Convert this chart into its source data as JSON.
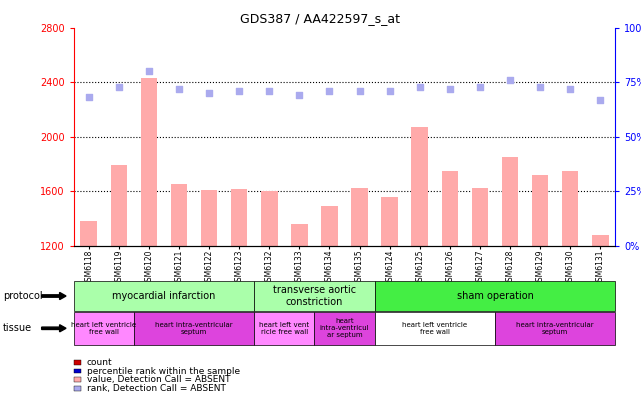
{
  "title": "GDS387 / AA422597_s_at",
  "samples": [
    "GSM6118",
    "GSM6119",
    "GSM6120",
    "GSM6121",
    "GSM6122",
    "GSM6123",
    "GSM6132",
    "GSM6133",
    "GSM6134",
    "GSM6135",
    "GSM6124",
    "GSM6125",
    "GSM6126",
    "GSM6127",
    "GSM6128",
    "GSM6129",
    "GSM6130",
    "GSM6131"
  ],
  "bar_values": [
    1380,
    1790,
    2430,
    1650,
    1610,
    1615,
    1600,
    1360,
    1490,
    1620,
    1560,
    2070,
    1750,
    1620,
    1850,
    1720,
    1750,
    1280
  ],
  "rank_values": [
    68,
    73,
    80,
    72,
    70,
    71,
    71,
    69,
    71,
    71,
    71,
    73,
    72,
    73,
    76,
    73,
    72,
    67
  ],
  "bar_color": "#ffaaaa",
  "rank_color": "#aaaaee",
  "ylim_left": [
    1200,
    2800
  ],
  "ylim_right": [
    0,
    100
  ],
  "yticks_left": [
    1200,
    1600,
    2000,
    2400,
    2800
  ],
  "yticks_right": [
    0,
    25,
    50,
    75,
    100
  ],
  "hlines": [
    1600,
    2000,
    2400
  ],
  "protocol_groups": [
    {
      "label": "myocardial infarction",
      "start": 0,
      "end": 6,
      "color": "#aaffaa"
    },
    {
      "label": "transverse aortic\nconstriction",
      "start": 6,
      "end": 10,
      "color": "#aaffaa"
    },
    {
      "label": "sham operation",
      "start": 10,
      "end": 18,
      "color": "#44ee44"
    }
  ],
  "tissue_groups": [
    {
      "label": "heart left ventricle\nfree wall",
      "start": 0,
      "end": 2,
      "color": "#ff88ff"
    },
    {
      "label": "heart intra-ventricular\nseptum",
      "start": 2,
      "end": 6,
      "color": "#dd44dd"
    },
    {
      "label": "heart left vent\nricle free wall",
      "start": 6,
      "end": 8,
      "color": "#ff88ff"
    },
    {
      "label": "heart\nintra-ventricul\nar septum",
      "start": 8,
      "end": 10,
      "color": "#dd44dd"
    },
    {
      "label": "heart left ventricle\nfree wall",
      "start": 10,
      "end": 14,
      "color": "white"
    },
    {
      "label": "heart intra-ventricular\nseptum",
      "start": 14,
      "end": 18,
      "color": "#dd44dd"
    }
  ],
  "legend_items": [
    {
      "label": "count",
      "color": "#cc0000"
    },
    {
      "label": "percentile rank within the sample",
      "color": "#0000cc"
    },
    {
      "label": "value, Detection Call = ABSENT",
      "color": "#ffaaaa"
    },
    {
      "label": "rank, Detection Call = ABSENT",
      "color": "#aaaaee"
    }
  ]
}
